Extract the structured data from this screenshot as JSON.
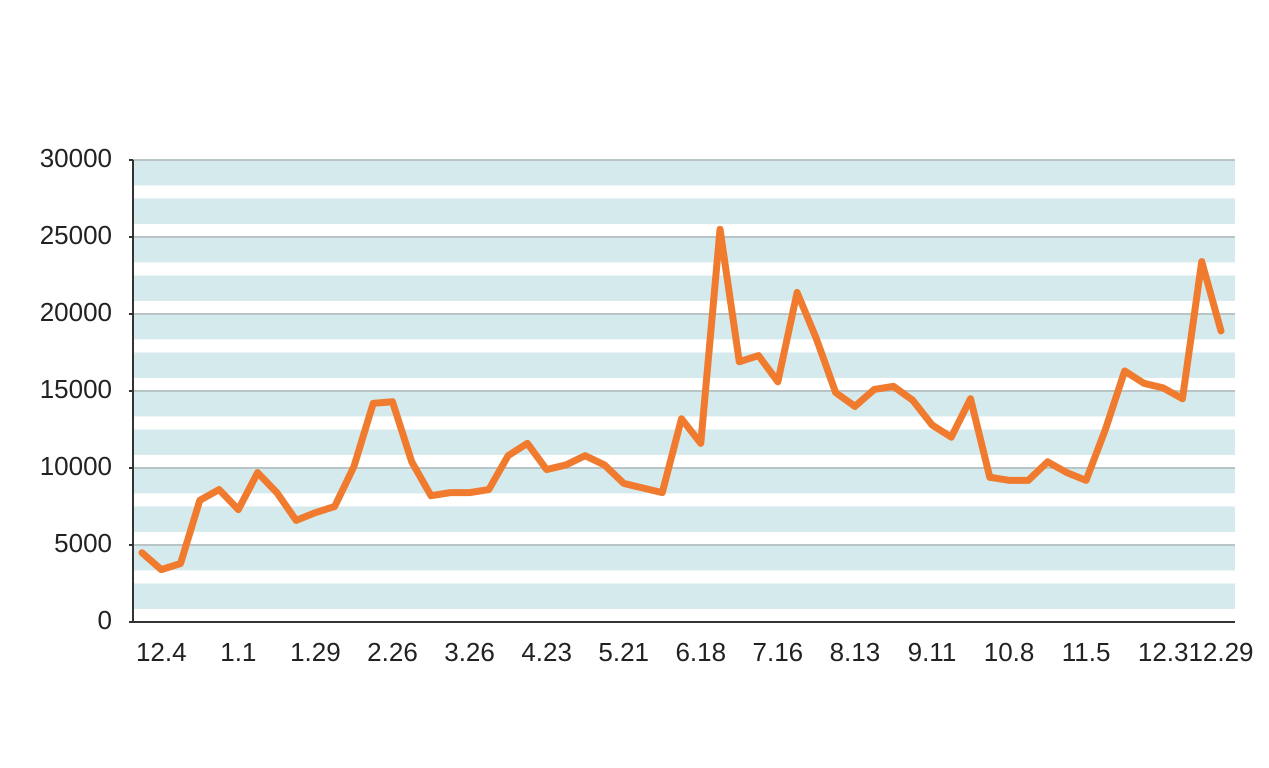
{
  "chart_data": {
    "type": "line",
    "categories": [
      null,
      "12.4",
      null,
      null,
      null,
      "1.1",
      null,
      null,
      null,
      "1.29",
      null,
      null,
      null,
      "2.26",
      null,
      null,
      null,
      "3.26",
      null,
      null,
      null,
      "4.23",
      null,
      null,
      null,
      "5.21",
      null,
      null,
      null,
      "6.18",
      null,
      null,
      null,
      "7.16",
      null,
      null,
      null,
      "8.13",
      null,
      null,
      null,
      "9.11",
      null,
      null,
      null,
      "10.8",
      null,
      null,
      null,
      "11.5",
      null,
      null,
      null,
      "12.3",
      null,
      null,
      "12.29"
    ],
    "series": [
      {
        "color": "#f07a2d",
        "values": [
          4500,
          3400,
          3800,
          7900,
          8600,
          7300,
          9700,
          8400,
          6600,
          7100,
          7500,
          10100,
          14200,
          14300,
          10400,
          8200,
          8400,
          8400,
          8600,
          10800,
          11600,
          9900,
          10200,
          10800,
          10200,
          9000,
          8700,
          8400,
          13200,
          11600,
          25500,
          16900,
          17300,
          15600,
          21400,
          18400,
          14900,
          14000,
          15100,
          15300,
          14400,
          12800,
          12000,
          14500,
          9400,
          9200,
          9200,
          10400,
          9700,
          9200,
          12500,
          16300,
          15500,
          15200,
          14500,
          23400,
          18900
        ]
      }
    ],
    "ylim": [
      0,
      30000
    ],
    "yticks": [
      0,
      5000,
      10000,
      15000,
      20000,
      25000,
      30000
    ],
    "grid": true
  }
}
